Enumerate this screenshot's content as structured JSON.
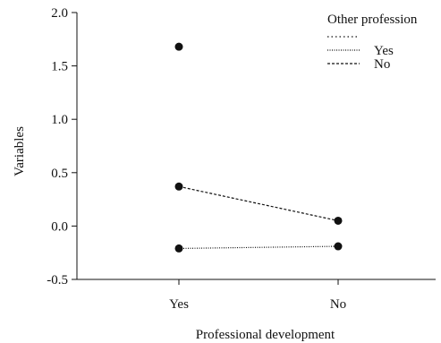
{
  "chart_data": {
    "type": "line",
    "title": "",
    "xlabel": "Professional development",
    "ylabel": "Variables",
    "categories": [
      "Yes",
      "No"
    ],
    "ylim": [
      -0.5,
      2.0
    ],
    "yticks": [
      -0.5,
      0.0,
      0.5,
      1.0,
      1.5,
      2.0
    ],
    "ytick_labels": [
      "-0.5",
      "0.0",
      "0.5",
      "1.0",
      "1.5",
      "2.0"
    ],
    "grid": false,
    "legend": {
      "title": "Other profession",
      "position": "top-right"
    },
    "series": [
      {
        "name": "",
        "line_style": "dotted",
        "values": [
          1.68,
          null
        ]
      },
      {
        "name": "Yes",
        "line_style": "dense-dotted",
        "values": [
          -0.21,
          -0.19
        ]
      },
      {
        "name": "No",
        "line_style": "dashed",
        "values": [
          0.37,
          0.05
        ]
      }
    ]
  }
}
